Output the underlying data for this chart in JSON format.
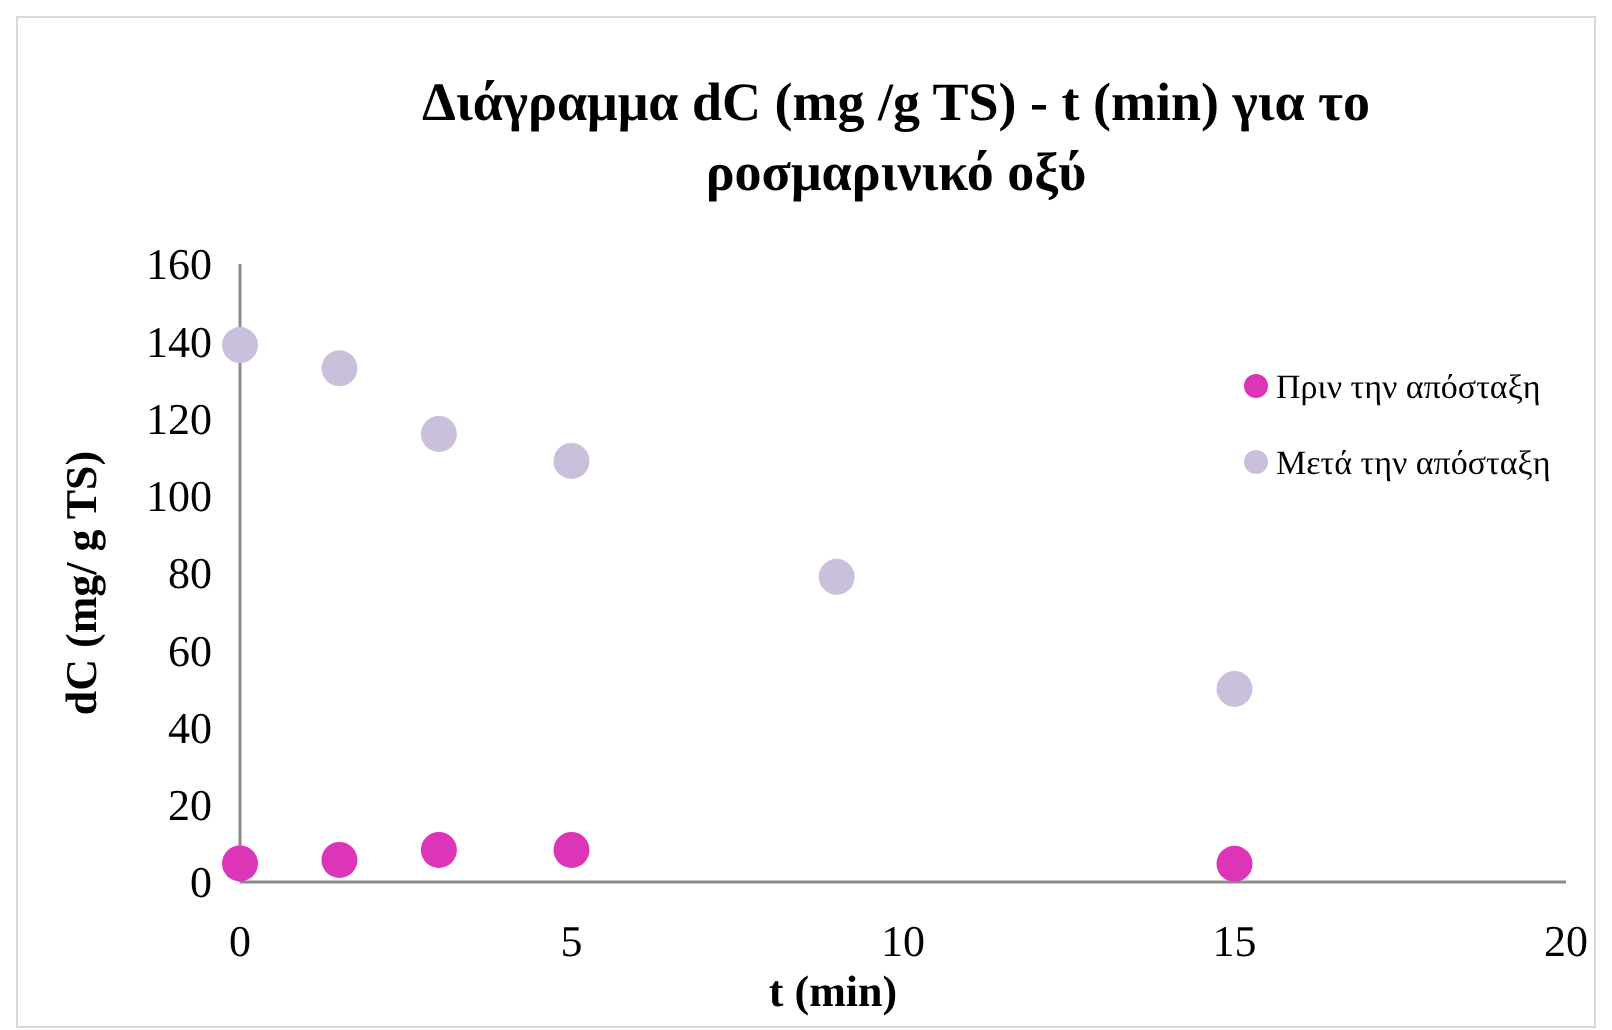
{
  "chart_data": {
    "type": "scatter",
    "title": "Διάγραμμα dC (mg /g TS) - t (min) για το ροσμαρινικό οξύ",
    "xlabel": "t (min)",
    "ylabel": "dC (mg/ g TS)",
    "x": [
      0,
      1.5,
      3,
      5,
      9,
      15
    ],
    "series": [
      {
        "name": "Πριν την απόσταξη",
        "color": "#dd35b8",
        "values": [
          4.8,
          5.7,
          8.3,
          8.3,
          null,
          4.7
        ]
      },
      {
        "name": "Μετά την απόσταξη",
        "color": "#cbc0db",
        "values": [
          139,
          133,
          116,
          109,
          79,
          50
        ]
      }
    ],
    "xlim": [
      0,
      20
    ],
    "xticks": [
      0,
      5,
      10,
      15,
      20
    ],
    "ylim": [
      0,
      160
    ],
    "yticks": [
      0,
      20,
      40,
      60,
      80,
      100,
      120,
      140,
      160
    ],
    "grid": false,
    "legend": "right",
    "marker": "circle"
  }
}
